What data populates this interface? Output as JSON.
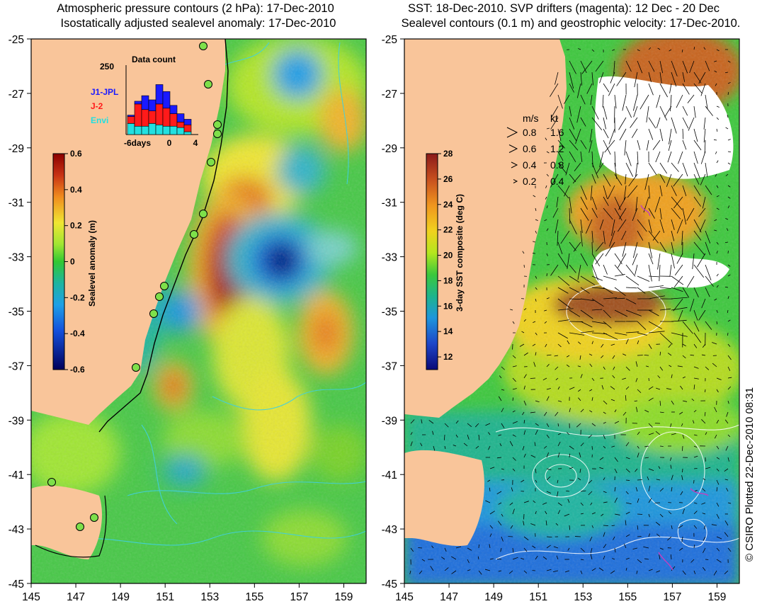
{
  "left_panel": {
    "title_line1": "Atmospheric pressure contours (2 hPa): 17-Dec-2010",
    "title_line2": "Isostatically adjusted sealevel anomaly: 17-Dec-2010",
    "x_ticks": [
      "145",
      "147",
      "149",
      "151",
      "153",
      "155",
      "157",
      "159"
    ],
    "y_ticks": [
      "-25",
      "-27",
      "-29",
      "-31",
      "-33",
      "-35",
      "-37",
      "-39",
      "-41",
      "-43",
      "-45"
    ],
    "colorbar": {
      "label": "Sealevel anomaly (m)",
      "ticks": [
        "0.6",
        "0.4",
        "0.2",
        "0",
        "-0.2",
        "-0.4",
        "-0.6"
      ],
      "range": [
        -0.6,
        0.6
      ]
    },
    "inset": {
      "title": "Data count",
      "ymax_label": "250",
      "x_labels": [
        "-6days",
        "0",
        "4"
      ],
      "legend": [
        {
          "label": "J1-JPL",
          "color": "#1a1aff"
        },
        {
          "label": "J-2",
          "color": "#ff1a1a"
        },
        {
          "label": "Envi",
          "color": "#22e0e0"
        }
      ],
      "stacked_bars": [
        [
          5,
          25,
          40
        ],
        [
          10,
          80,
          30
        ],
        [
          50,
          60,
          30
        ],
        [
          40,
          45,
          40
        ],
        [
          70,
          75,
          35
        ],
        [
          60,
          65,
          30
        ],
        [
          30,
          45,
          30
        ],
        [
          30,
          20,
          25
        ],
        [
          20,
          25,
          10
        ]
      ]
    }
  },
  "right_panel": {
    "title_line1": "SST: 18-Dec-2010. SVP drifters (magenta): 12 Dec - 20 Dec",
    "title_line2": "Sealevel contours (0.1 m) and geostrophic velocity: 17-Dec-2010.",
    "x_ticks": [
      "145",
      "147",
      "149",
      "151",
      "153",
      "155",
      "157",
      "159"
    ],
    "y_ticks": [
      "-25",
      "-27",
      "-29",
      "-31",
      "-33",
      "-35",
      "-37",
      "-39",
      "-41",
      "-43",
      "-45"
    ],
    "colorbar": {
      "label": "3-day SST composite (deg C)",
      "ticks": [
        "28",
        "26",
        "24",
        "22",
        "20",
        "18",
        "16",
        "14",
        "12"
      ],
      "range": [
        11,
        28
      ]
    },
    "velocity_legend": {
      "header_ms": "m/s",
      "header_kt": "kt",
      "rows": [
        {
          "ms": "0.8",
          "kt": "1.6"
        },
        {
          "ms": "0.6",
          "kt": "1.2"
        },
        {
          "ms": "0.4",
          "kt": "0.8"
        },
        {
          "ms": "0.2",
          "kt": "0.4"
        }
      ]
    }
  },
  "credit": "© CSIRO Plotted 22-Dec-2010 08:31",
  "colors": {
    "land": "#f9c59a",
    "coast": "#000000",
    "contour": "#40d0e0",
    "sst_cloud": "#ffffff",
    "drifter": "#c040c0"
  },
  "map_extent": {
    "lon": [
      145,
      160
    ],
    "lat": [
      -45,
      -25
    ]
  }
}
